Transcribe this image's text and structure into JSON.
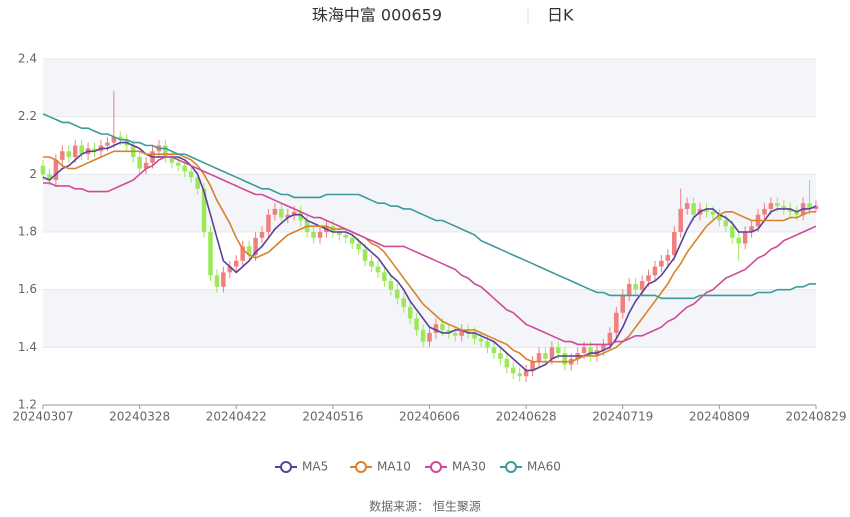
{
  "chart_data": {
    "type": "candlestick",
    "title": "珠海中富 000659",
    "period": "日K",
    "source": "数据来源： 恒生聚源",
    "categories": [
      "20240307",
      null,
      null,
      null,
      null,
      null,
      null,
      null,
      null,
      null,
      null,
      null,
      null,
      null,
      null,
      "20240328",
      null,
      null,
      null,
      null,
      null,
      null,
      null,
      null,
      null,
      null,
      null,
      null,
      null,
      null,
      "20240422",
      null,
      null,
      null,
      null,
      null,
      null,
      null,
      null,
      null,
      null,
      null,
      null,
      null,
      null,
      "20240516",
      null,
      null,
      null,
      null,
      null,
      null,
      null,
      null,
      null,
      null,
      null,
      null,
      null,
      null,
      "20240606",
      null,
      null,
      null,
      null,
      null,
      null,
      null,
      null,
      null,
      null,
      null,
      null,
      null,
      null,
      "20240628",
      null,
      null,
      null,
      null,
      null,
      null,
      null,
      null,
      null,
      null,
      null,
      null,
      null,
      null,
      "20240719",
      null,
      null,
      null,
      null,
      null,
      null,
      null,
      null,
      null,
      null,
      null,
      null,
      null,
      null,
      "20240809",
      null,
      null,
      null,
      null,
      null,
      null,
      null,
      null,
      null,
      null,
      null,
      null,
      null,
      null,
      "20240829"
    ],
    "open": [
      2.03,
      2.0,
      1.98,
      2.05,
      2.08,
      2.06,
      2.1,
      2.07,
      2.09,
      2.08,
      2.1,
      2.11,
      2.13,
      2.12,
      2.1,
      2.06,
      2.02,
      2.04,
      2.08,
      2.1,
      2.06,
      2.04,
      2.03,
      2.01,
      1.99,
      1.95,
      1.8,
      1.65,
      1.61,
      1.66,
      1.68,
      1.7,
      1.75,
      1.72,
      1.78,
      1.8,
      1.86,
      1.88,
      1.85,
      1.86,
      1.87,
      1.84,
      1.8,
      1.78,
      1.8,
      1.82,
      1.8,
      1.79,
      1.78,
      1.76,
      1.74,
      1.7,
      1.68,
      1.66,
      1.63,
      1.6,
      1.57,
      1.54,
      1.5,
      1.46,
      1.42,
      1.45,
      1.48,
      1.46,
      1.45,
      1.44,
      1.46,
      1.45,
      1.43,
      1.42,
      1.4,
      1.38,
      1.36,
      1.33,
      1.31,
      1.3,
      1.32,
      1.35,
      1.38,
      1.36,
      1.4,
      1.38,
      1.34,
      1.36,
      1.38,
      1.4,
      1.37,
      1.39,
      1.41,
      1.45,
      1.52,
      1.58,
      1.62,
      1.6,
      1.63,
      1.65,
      1.68,
      1.7,
      1.72,
      1.8,
      1.88,
      1.9,
      1.86,
      1.88,
      1.87,
      1.86,
      1.84,
      1.82,
      1.78,
      1.76,
      1.8,
      1.82,
      1.86,
      1.88,
      1.9,
      1.89,
      1.88,
      1.87,
      1.86,
      1.9,
      1.88
    ],
    "high": [
      2.05,
      2.02,
      2.07,
      2.1,
      2.1,
      2.12,
      2.12,
      2.11,
      2.11,
      2.12,
      2.13,
      2.29,
      2.15,
      2.14,
      2.12,
      2.08,
      2.06,
      2.1,
      2.12,
      2.12,
      2.08,
      2.06,
      2.05,
      2.03,
      2.01,
      1.97,
      1.82,
      1.67,
      1.68,
      1.7,
      1.72,
      1.77,
      1.77,
      1.8,
      1.82,
      1.88,
      1.9,
      1.9,
      1.88,
      1.89,
      1.89,
      1.86,
      1.82,
      1.82,
      1.84,
      1.84,
      1.82,
      1.81,
      1.8,
      1.78,
      1.76,
      1.72,
      1.7,
      1.68,
      1.65,
      1.62,
      1.59,
      1.56,
      1.52,
      1.48,
      1.47,
      1.5,
      1.5,
      1.48,
      1.47,
      1.48,
      1.48,
      1.47,
      1.45,
      1.44,
      1.42,
      1.4,
      1.38,
      1.35,
      1.33,
      1.34,
      1.37,
      1.4,
      1.4,
      1.42,
      1.42,
      1.4,
      1.38,
      1.4,
      1.42,
      1.42,
      1.41,
      1.43,
      1.47,
      1.54,
      1.6,
      1.64,
      1.64,
      1.65,
      1.67,
      1.7,
      1.72,
      1.74,
      1.82,
      1.95,
      1.92,
      1.92,
      1.9,
      1.9,
      1.89,
      1.88,
      1.86,
      1.84,
      1.8,
      1.82,
      1.84,
      1.88,
      1.9,
      1.92,
      1.92,
      1.91,
      1.9,
      1.89,
      1.92,
      1.98,
      1.91
    ],
    "low": [
      1.98,
      1.96,
      1.96,
      2.03,
      2.04,
      2.04,
      2.05,
      2.05,
      2.06,
      2.06,
      2.08,
      2.09,
      2.1,
      2.08,
      2.04,
      2.0,
      2.0,
      2.02,
      2.06,
      2.04,
      2.02,
      2.01,
      1.99,
      1.97,
      1.93,
      1.78,
      1.63,
      1.59,
      1.59,
      1.64,
      1.66,
      1.68,
      1.7,
      1.7,
      1.76,
      1.78,
      1.84,
      1.83,
      1.83,
      1.84,
      1.82,
      1.78,
      1.76,
      1.76,
      1.78,
      1.78,
      1.77,
      1.76,
      1.74,
      1.72,
      1.68,
      1.66,
      1.64,
      1.61,
      1.58,
      1.55,
      1.52,
      1.48,
      1.44,
      1.4,
      1.4,
      1.43,
      1.44,
      1.43,
      1.42,
      1.42,
      1.43,
      1.41,
      1.4,
      1.38,
      1.36,
      1.34,
      1.31,
      1.29,
      1.28,
      1.28,
      1.3,
      1.33,
      1.34,
      1.34,
      1.36,
      1.32,
      1.32,
      1.34,
      1.36,
      1.35,
      1.35,
      1.37,
      1.39,
      1.43,
      1.5,
      1.56,
      1.58,
      1.58,
      1.61,
      1.63,
      1.66,
      1.68,
      1.7,
      1.78,
      1.86,
      1.84,
      1.84,
      1.85,
      1.84,
      1.82,
      1.8,
      1.76,
      1.7,
      1.74,
      1.78,
      1.8,
      1.84,
      1.86,
      1.87,
      1.86,
      1.85,
      1.84,
      1.84,
      1.86,
      1.87
    ],
    "close": [
      2.0,
      1.98,
      2.05,
      2.08,
      2.06,
      2.1,
      2.07,
      2.09,
      2.08,
      2.1,
      2.11,
      2.13,
      2.12,
      2.1,
      2.06,
      2.02,
      2.04,
      2.08,
      2.1,
      2.06,
      2.04,
      2.03,
      2.01,
      1.99,
      1.95,
      1.8,
      1.65,
      1.61,
      1.66,
      1.68,
      1.7,
      1.75,
      1.72,
      1.78,
      1.8,
      1.86,
      1.88,
      1.85,
      1.86,
      1.87,
      1.84,
      1.8,
      1.78,
      1.8,
      1.82,
      1.8,
      1.79,
      1.78,
      1.76,
      1.74,
      1.7,
      1.68,
      1.66,
      1.63,
      1.6,
      1.57,
      1.54,
      1.5,
      1.46,
      1.42,
      1.45,
      1.48,
      1.46,
      1.45,
      1.44,
      1.46,
      1.45,
      1.43,
      1.42,
      1.4,
      1.38,
      1.36,
      1.33,
      1.31,
      1.3,
      1.32,
      1.35,
      1.38,
      1.36,
      1.4,
      1.38,
      1.34,
      1.36,
      1.38,
      1.4,
      1.37,
      1.39,
      1.41,
      1.45,
      1.52,
      1.58,
      1.62,
      1.6,
      1.63,
      1.65,
      1.68,
      1.7,
      1.72,
      1.8,
      1.88,
      1.9,
      1.86,
      1.88,
      1.87,
      1.86,
      1.84,
      1.82,
      1.78,
      1.76,
      1.8,
      1.82,
      1.86,
      1.88,
      1.9,
      1.89,
      1.88,
      1.87,
      1.86,
      1.9,
      1.88,
      1.89
    ],
    "up_color": "#ef8080",
    "down_color": "#9be85a",
    "series": [
      {
        "name": "MA5",
        "color": "#5b3f9a",
        "values": [
          1.99,
          1.98,
          2.0,
          2.02,
          2.03,
          2.05,
          2.07,
          2.08,
          2.08,
          2.09,
          2.09,
          2.1,
          2.11,
          2.11,
          2.1,
          2.09,
          2.07,
          2.06,
          2.06,
          2.06,
          2.06,
          2.06,
          2.05,
          2.03,
          2.0,
          1.94,
          1.86,
          1.78,
          1.7,
          1.68,
          1.66,
          1.68,
          1.7,
          1.73,
          1.75,
          1.78,
          1.81,
          1.83,
          1.85,
          1.86,
          1.86,
          1.84,
          1.83,
          1.82,
          1.81,
          1.8,
          1.8,
          1.8,
          1.79,
          1.77,
          1.75,
          1.73,
          1.71,
          1.68,
          1.65,
          1.63,
          1.6,
          1.56,
          1.53,
          1.5,
          1.47,
          1.46,
          1.45,
          1.45,
          1.46,
          1.46,
          1.45,
          1.45,
          1.44,
          1.43,
          1.42,
          1.4,
          1.38,
          1.36,
          1.34,
          1.32,
          1.32,
          1.33,
          1.34,
          1.36,
          1.37,
          1.37,
          1.37,
          1.37,
          1.37,
          1.38,
          1.38,
          1.39,
          1.4,
          1.43,
          1.47,
          1.52,
          1.56,
          1.59,
          1.62,
          1.63,
          1.65,
          1.68,
          1.71,
          1.76,
          1.81,
          1.85,
          1.87,
          1.88,
          1.88,
          1.86,
          1.85,
          1.83,
          1.8,
          1.8,
          1.8,
          1.81,
          1.84,
          1.87,
          1.88,
          1.88,
          1.88,
          1.87,
          1.88,
          1.88,
          1.89
        ]
      },
      {
        "name": "MA10",
        "color": "#d9822b",
        "values": [
          2.06,
          2.06,
          2.05,
          2.03,
          2.02,
          2.02,
          2.03,
          2.04,
          2.05,
          2.06,
          2.07,
          2.08,
          2.08,
          2.08,
          2.08,
          2.08,
          2.07,
          2.07,
          2.07,
          2.07,
          2.07,
          2.07,
          2.06,
          2.05,
          2.03,
          2.0,
          1.96,
          1.91,
          1.87,
          1.83,
          1.78,
          1.74,
          1.72,
          1.71,
          1.72,
          1.73,
          1.75,
          1.77,
          1.79,
          1.8,
          1.81,
          1.82,
          1.82,
          1.82,
          1.82,
          1.81,
          1.81,
          1.81,
          1.8,
          1.79,
          1.78,
          1.76,
          1.75,
          1.73,
          1.7,
          1.67,
          1.64,
          1.61,
          1.58,
          1.55,
          1.53,
          1.51,
          1.49,
          1.48,
          1.47,
          1.46,
          1.46,
          1.46,
          1.45,
          1.44,
          1.43,
          1.42,
          1.41,
          1.39,
          1.38,
          1.36,
          1.35,
          1.35,
          1.35,
          1.35,
          1.35,
          1.35,
          1.35,
          1.36,
          1.37,
          1.37,
          1.37,
          1.38,
          1.39,
          1.4,
          1.42,
          1.44,
          1.47,
          1.5,
          1.53,
          1.56,
          1.59,
          1.62,
          1.66,
          1.69,
          1.73,
          1.76,
          1.79,
          1.82,
          1.84,
          1.86,
          1.87,
          1.87,
          1.86,
          1.85,
          1.84,
          1.84,
          1.84,
          1.84,
          1.84,
          1.84,
          1.85,
          1.85,
          1.86,
          1.87,
          1.87
        ]
      },
      {
        "name": "MA30",
        "color": "#cf4a98",
        "values": [
          1.97,
          1.97,
          1.96,
          1.96,
          1.96,
          1.95,
          1.95,
          1.94,
          1.94,
          1.94,
          1.94,
          1.95,
          1.96,
          1.97,
          1.98,
          2.0,
          2.02,
          2.03,
          2.05,
          2.06,
          2.06,
          2.05,
          2.04,
          2.03,
          2.02,
          2.01,
          2.0,
          1.99,
          1.98,
          1.97,
          1.96,
          1.95,
          1.94,
          1.93,
          1.93,
          1.92,
          1.91,
          1.9,
          1.89,
          1.88,
          1.87,
          1.86,
          1.85,
          1.85,
          1.84,
          1.83,
          1.82,
          1.81,
          1.8,
          1.79,
          1.78,
          1.77,
          1.76,
          1.75,
          1.75,
          1.75,
          1.75,
          1.74,
          1.73,
          1.72,
          1.71,
          1.7,
          1.69,
          1.68,
          1.67,
          1.65,
          1.64,
          1.62,
          1.61,
          1.59,
          1.57,
          1.55,
          1.53,
          1.52,
          1.5,
          1.48,
          1.47,
          1.46,
          1.45,
          1.44,
          1.43,
          1.42,
          1.42,
          1.41,
          1.41,
          1.41,
          1.41,
          1.41,
          1.41,
          1.42,
          1.42,
          1.43,
          1.44,
          1.44,
          1.45,
          1.46,
          1.47,
          1.49,
          1.5,
          1.52,
          1.54,
          1.55,
          1.57,
          1.59,
          1.6,
          1.62,
          1.64,
          1.65,
          1.66,
          1.67,
          1.69,
          1.71,
          1.72,
          1.74,
          1.75,
          1.77,
          1.78,
          1.79,
          1.8,
          1.81,
          1.82
        ]
      },
      {
        "name": "MA60",
        "color": "#3d9a9a",
        "values": [
          2.21,
          2.2,
          2.19,
          2.18,
          2.18,
          2.17,
          2.16,
          2.16,
          2.15,
          2.14,
          2.14,
          2.13,
          2.12,
          2.12,
          2.11,
          2.11,
          2.1,
          2.1,
          2.09,
          2.09,
          2.08,
          2.07,
          2.07,
          2.06,
          2.05,
          2.04,
          2.03,
          2.02,
          2.01,
          2.0,
          1.99,
          1.98,
          1.97,
          1.96,
          1.95,
          1.95,
          1.94,
          1.93,
          1.93,
          1.92,
          1.92,
          1.92,
          1.92,
          1.92,
          1.93,
          1.93,
          1.93,
          1.93,
          1.93,
          1.93,
          1.92,
          1.91,
          1.9,
          1.9,
          1.89,
          1.89,
          1.88,
          1.88,
          1.87,
          1.86,
          1.85,
          1.84,
          1.84,
          1.83,
          1.82,
          1.81,
          1.8,
          1.79,
          1.77,
          1.76,
          1.75,
          1.74,
          1.73,
          1.72,
          1.71,
          1.7,
          1.69,
          1.68,
          1.67,
          1.66,
          1.65,
          1.64,
          1.63,
          1.62,
          1.61,
          1.6,
          1.59,
          1.59,
          1.58,
          1.58,
          1.58,
          1.58,
          1.58,
          1.58,
          1.58,
          1.58,
          1.57,
          1.57,
          1.57,
          1.57,
          1.57,
          1.57,
          1.58,
          1.58,
          1.58,
          1.58,
          1.58,
          1.58,
          1.58,
          1.58,
          1.58,
          1.59,
          1.59,
          1.59,
          1.6,
          1.6,
          1.6,
          1.61,
          1.61,
          1.62,
          1.62
        ]
      }
    ],
    "ylim": [
      1.2,
      2.4
    ],
    "yticks": [
      1.2,
      1.4,
      1.6,
      1.8,
      2,
      2.2,
      2.4
    ],
    "grid": true
  }
}
